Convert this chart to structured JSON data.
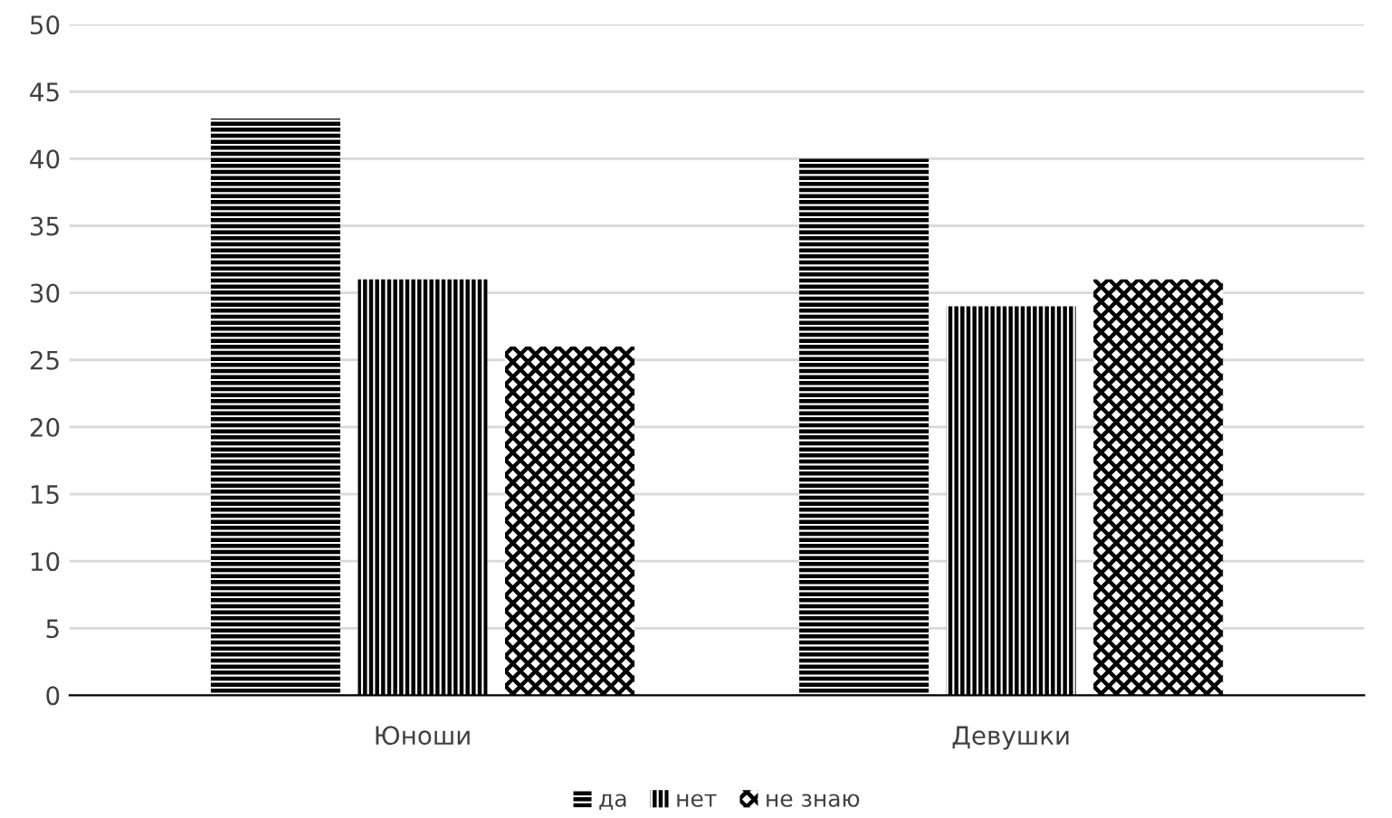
{
  "chart_data": {
    "type": "bar",
    "categories": [
      "Юноши",
      "Девушки"
    ],
    "series": [
      {
        "name": "да",
        "color": "#000000",
        "values": [
          43,
          40
        ]
      },
      {
        "name": "нет",
        "color": "#000000",
        "values": [
          31,
          29
        ]
      },
      {
        "name": "не знаю",
        "color": "#000000",
        "values": [
          26,
          31
        ]
      }
    ],
    "ylim": [
      0,
      50
    ],
    "yticks": [
      0,
      5,
      10,
      15,
      20,
      25,
      30,
      35,
      40,
      45,
      50
    ],
    "grid": "y",
    "legend": "bottom"
  }
}
